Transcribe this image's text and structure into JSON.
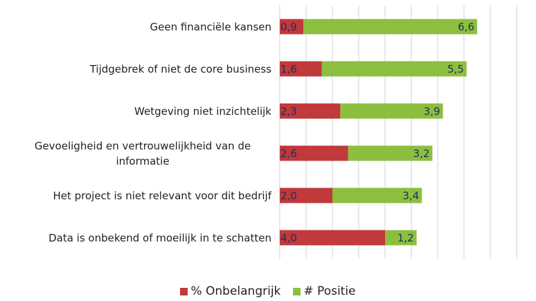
{
  "chart_data": {
    "type": "stacked_bar_horizontal",
    "categories": [
      "Geen financiële kansen",
      "Tijdgebrek of niet de core business",
      "Wetgeving niet inzichtelijk",
      "Gevoeligheid en vertrouwelijkheid van de informatie",
      "Het project is niet relevant voor dit bedrijf",
      "Data is onbekend of moeilijk in te schatten"
    ],
    "series": [
      {
        "name": "% Onbelangrijk",
        "color": "#c0393b",
        "values": [
          0.9,
          1.6,
          2.3,
          2.6,
          2.0,
          4.0
        ],
        "value_labels": [
          "0,9",
          "1,6",
          "2,3",
          "2,6",
          "2,0",
          "4,0"
        ]
      },
      {
        "name": "# Positie",
        "color": "#8dbf3f",
        "values": [
          6.6,
          5.5,
          3.9,
          3.2,
          3.4,
          1.2
        ],
        "value_labels": [
          "6,6",
          "5,5",
          "3,9",
          "3,2",
          "3,4",
          "1,2"
        ]
      }
    ],
    "xlim": [
      0,
      9
    ],
    "xticks": [
      0,
      1,
      2,
      3,
      4,
      5,
      6,
      7,
      8,
      9
    ],
    "grid": true,
    "legend": "bottom"
  }
}
